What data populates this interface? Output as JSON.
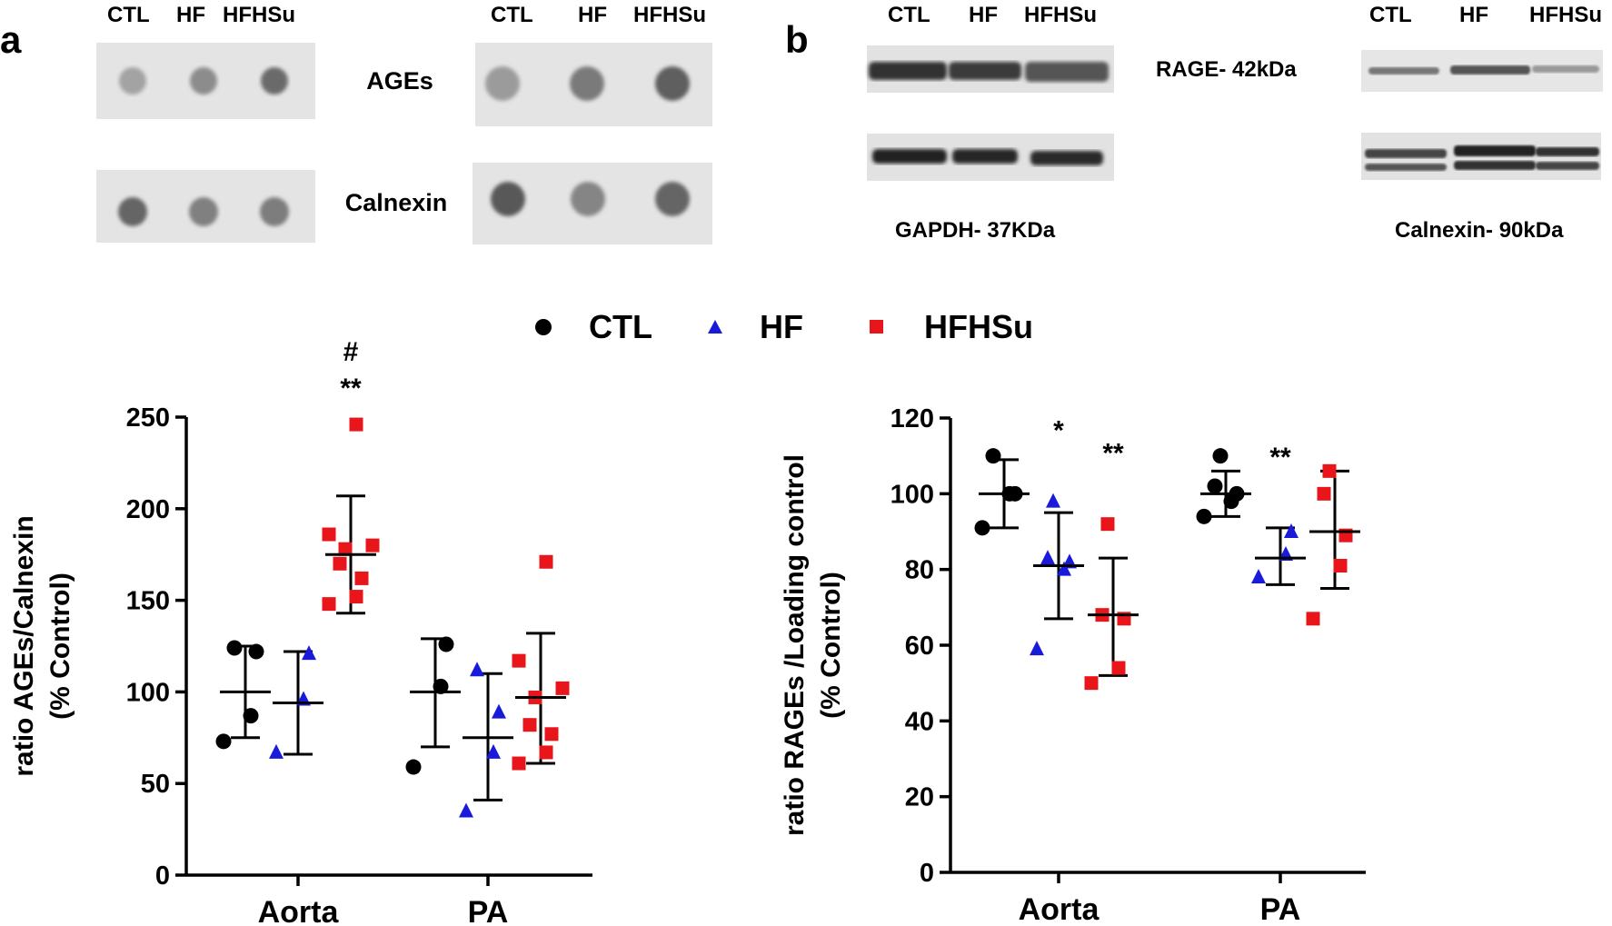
{
  "panel_a": {
    "label": "a",
    "blot_left": {
      "lanes": [
        "CTL",
        "HF",
        "HFHSu"
      ],
      "ages_intensity": [
        0.25,
        0.4,
        0.62
      ],
      "calnexin_intensity": [
        0.66,
        0.48,
        0.5
      ]
    },
    "blot_right": {
      "lanes": [
        "CTL",
        "HF",
        "HFHSu"
      ],
      "ages_intensity": [
        0.3,
        0.52,
        0.7
      ],
      "calnexin_intensity": [
        0.74,
        0.45,
        0.66
      ]
    },
    "row_labels": [
      "AGEs",
      "Calnexin"
    ]
  },
  "panel_b": {
    "label": "b",
    "blot_left": {
      "lanes": [
        "CTL",
        "HF",
        "HFHSu"
      ],
      "top_label": "RAGE- 42kDa",
      "bottom_label": "GAPDH- 37KDa"
    },
    "blot_right": {
      "lanes": [
        "CTL",
        "HF",
        "HFHSu"
      ],
      "bottom_label": "Calnexin- 90kDa"
    }
  },
  "legend": [
    {
      "name": "CTL",
      "color": "#000000",
      "marker": "circle"
    },
    {
      "name": "HF",
      "color": "#1a1adb",
      "marker": "triangle"
    },
    {
      "name": "HFHSu",
      "color": "#e8151b",
      "marker": "square"
    }
  ],
  "chart_data": [
    {
      "type": "scatter",
      "ylabel_line1": "ratio AGEs/Calnexin",
      "ylabel_line2": "(% Control)",
      "ylim": [
        0,
        250
      ],
      "yticks": [
        0,
        50,
        100,
        150,
        200,
        250
      ],
      "categories": [
        "Aorta",
        "PA"
      ],
      "groups": [
        {
          "category": "Aorta",
          "series": "CTL",
          "mean": 100,
          "sd_low": 75,
          "sd_high": 125,
          "points": [
            73,
            87,
            122,
            124
          ]
        },
        {
          "category": "Aorta",
          "series": "HF",
          "mean": 94,
          "sd_low": 66,
          "sd_high": 122,
          "points": [
            67,
            96,
            121
          ]
        },
        {
          "category": "Aorta",
          "series": "HFHSu",
          "mean": 175,
          "sd_low": 143,
          "sd_high": 207,
          "points": [
            148,
            152,
            162,
            170,
            178,
            180,
            186,
            246
          ],
          "annotation_top": "#",
          "annotation_bottom": "**"
        },
        {
          "category": "PA",
          "series": "CTL",
          "mean": 100,
          "sd_low": 70,
          "sd_high": 129,
          "points": [
            59,
            103,
            126
          ]
        },
        {
          "category": "PA",
          "series": "HF",
          "mean": 75,
          "sd_low": 41,
          "sd_high": 110,
          "points": [
            35,
            67,
            89,
            112
          ]
        },
        {
          "category": "PA",
          "series": "HFHSu",
          "mean": 97,
          "sd_low": 61,
          "sd_high": 132,
          "points": [
            61,
            67,
            77,
            82,
            97,
            102,
            117,
            171
          ]
        }
      ]
    },
    {
      "type": "scatter",
      "ylabel_line1": "ratio RAGEs /Loading control",
      "ylabel_line2": "(% Control)",
      "ylim": [
        0,
        120
      ],
      "yticks": [
        0,
        20,
        40,
        60,
        80,
        100,
        120
      ],
      "categories": [
        "Aorta",
        "PA"
      ],
      "groups": [
        {
          "category": "Aorta",
          "series": "CTL",
          "mean": 100,
          "sd_low": 91,
          "sd_high": 109,
          "points": [
            91,
            100,
            100,
            110
          ]
        },
        {
          "category": "Aorta",
          "series": "HF",
          "mean": 81,
          "sd_low": 67,
          "sd_high": 95,
          "points": [
            59,
            80,
            82,
            83,
            98
          ],
          "annotation_bottom": "*"
        },
        {
          "category": "Aorta",
          "series": "HFHSu",
          "mean": 68,
          "sd_low": 52,
          "sd_high": 83,
          "points": [
            50,
            54,
            67,
            68,
            92
          ],
          "annotation_bottom": "**"
        },
        {
          "category": "PA",
          "series": "CTL",
          "mean": 100,
          "sd_low": 94,
          "sd_high": 106,
          "points": [
            94,
            98,
            100,
            102,
            110
          ]
        },
        {
          "category": "PA",
          "series": "HF",
          "mean": 83,
          "sd_low": 76,
          "sd_high": 91,
          "points": [
            78,
            84,
            90
          ],
          "annotation_bottom": "**"
        },
        {
          "category": "PA",
          "series": "HFHSu",
          "mean": 90,
          "sd_low": 75,
          "sd_high": 106,
          "points": [
            67,
            81,
            89,
            100,
            106
          ]
        }
      ]
    }
  ]
}
